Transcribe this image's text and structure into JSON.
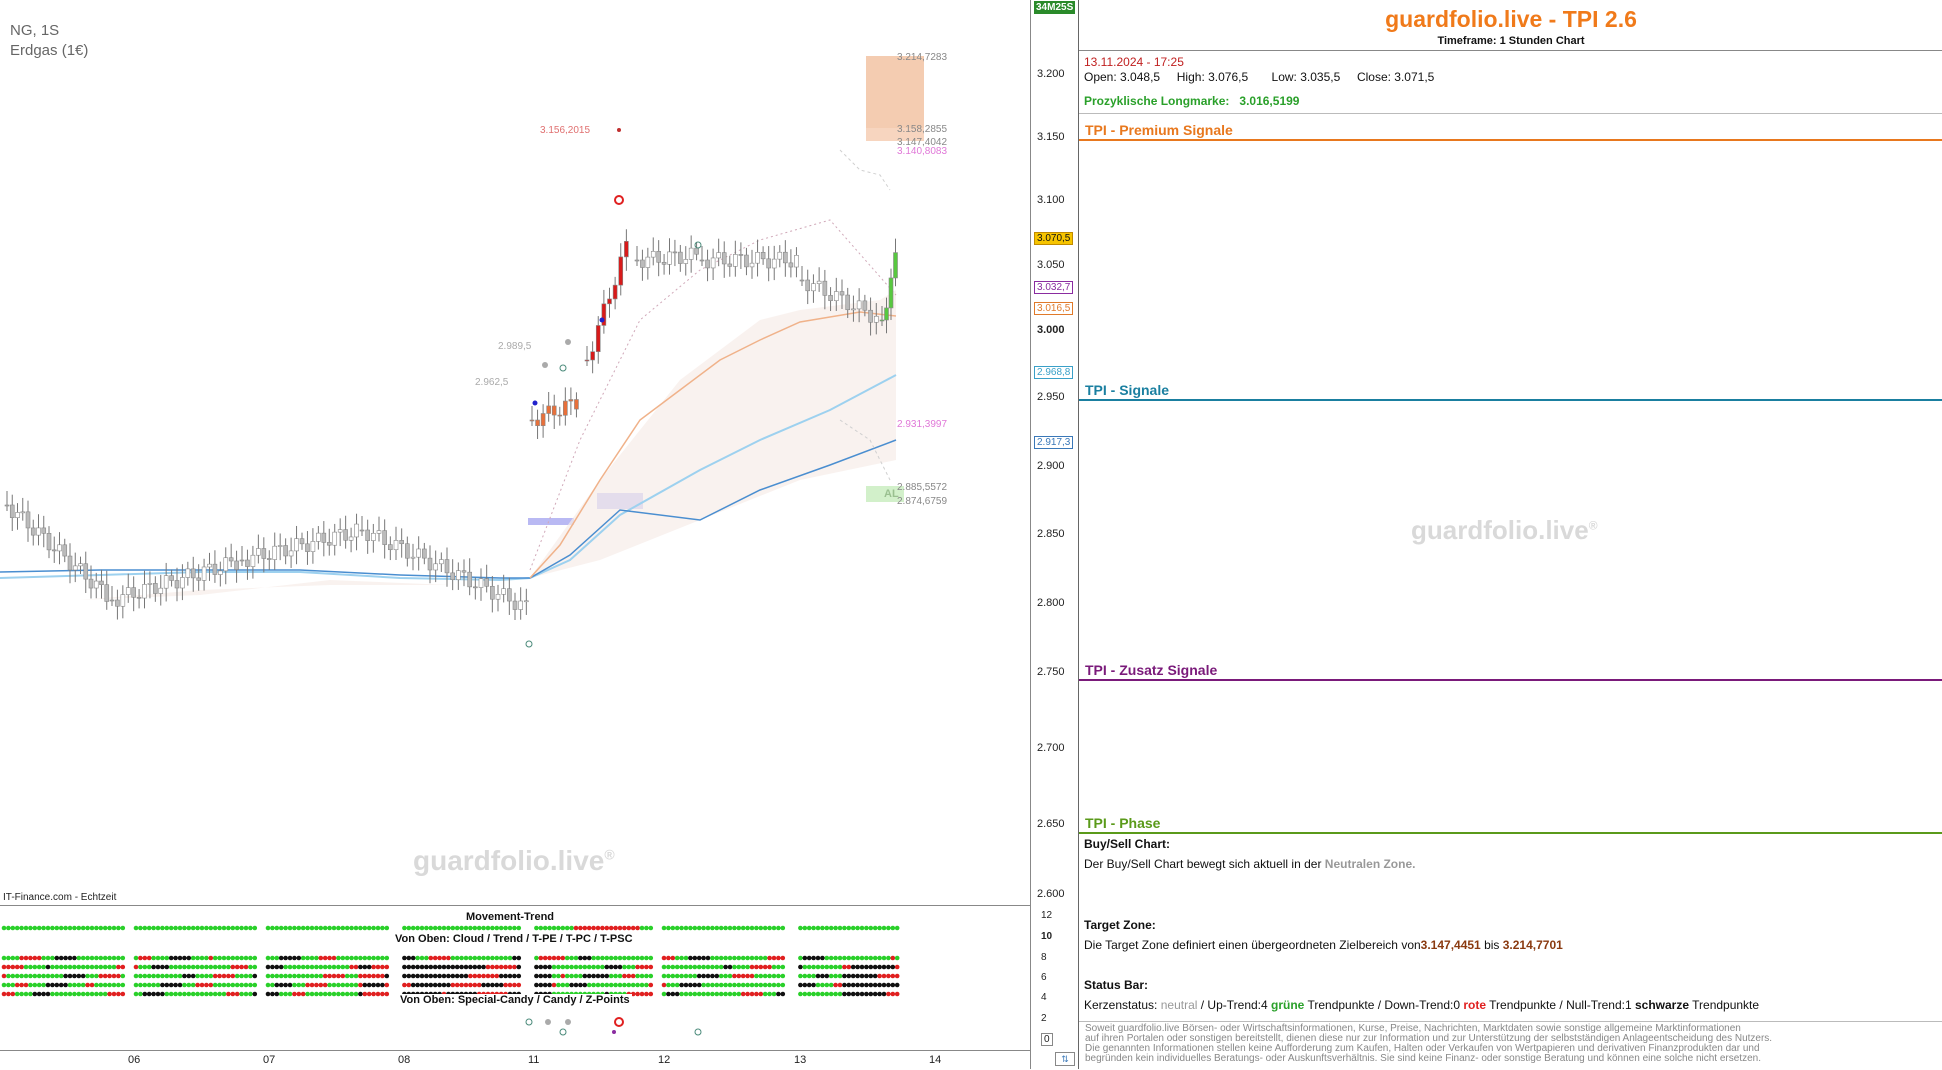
{
  "chart": {
    "symbol": "NG, 1S",
    "name": "Erdgas (1€)",
    "source": "IT-Finance.com - Echtzeit",
    "watermark": "guardfolio.live",
    "watermark_sup": "®",
    "corner_badge": "34M25S",
    "price_labels": [
      "3.214,7283",
      "3.158,2855",
      "3.147,4042",
      "3.140,8083",
      "3.156,2015",
      "2.989,5",
      "2.962,5",
      "2.931,3997",
      "2.885,5572",
      "2.874,6759"
    ],
    "al_label": "AL",
    "y_ticks": [
      "3.200",
      "3.150",
      "3.100",
      "3.050",
      "3.000",
      "2.950",
      "2.900",
      "2.850",
      "2.800",
      "2.750",
      "2.700",
      "2.650",
      "2.600"
    ],
    "y_markers": [
      {
        "label": "3.070,5",
        "color": "#c08a00",
        "fill": "#f6c400"
      },
      {
        "label": "3.032,7",
        "color": "#8a2ca0",
        "fill": "#ffffff"
      },
      {
        "label": "3.016,5",
        "color": "#e07a2a",
        "fill": "#ffffff"
      },
      {
        "label": "2.968,8",
        "color": "#3aa0c8",
        "fill": "#ffffff"
      },
      {
        "label": "2.917,3",
        "color": "#3a78b8",
        "fill": "#ffffff"
      }
    ],
    "x_ticks": [
      "06",
      "07",
      "08",
      "11",
      "12",
      "13",
      "14"
    ]
  },
  "indicator": {
    "title": "Movement-Trend",
    "sub1": "Von Oben: Cloud / Trend / T-PE / T-PC / T-PSC",
    "sub2": "Von Oben: Special-Candy / Candy / Z-Points",
    "y_ticks": [
      "12",
      "10",
      "8",
      "6",
      "4",
      "2",
      "0"
    ]
  },
  "panel": {
    "title": "guardfolio.live - TPI 2.6",
    "subtitle": "Timeframe: 1 Stunden Chart",
    "datetime": "13.11.2024 - 17:25",
    "ohlc": {
      "open_label": "Open:",
      "open": "3.048,5",
      "high_label": "High:",
      "high": "3.076,5",
      "low_label": "Low:",
      "low": "3.035,5",
      "close_label": "Close:",
      "close": "3.071,5"
    },
    "long_label": "Prozyklische Longmarke:",
    "long_value": "3.016,5199",
    "sections": [
      {
        "label": "TPI - Premium Signale",
        "color": "#e8781e"
      },
      {
        "label": "TPI - Signale",
        "color": "#1a7fa0"
      },
      {
        "label": "TPI - Zusatz Signale",
        "color": "#7a1a7a"
      },
      {
        "label": "TPI - Phase",
        "color": "#5a9a1a"
      }
    ],
    "watermark": "guardfolio.live",
    "buysell_title": "Buy/Sell Chart:",
    "buysell_text": "Der Buy/Sell Chart bewegt sich aktuell in der",
    "buysell_zone": "Neutralen Zone.",
    "target_title": "Target Zone:",
    "target_text": "Die Target Zone definiert einen übergeordneten Zielbereich von",
    "target_from": "3.147,4451",
    "target_mid": " bis ",
    "target_to": "3.214,7701",
    "status_title": "Status Bar:",
    "status": {
      "p1": "Kerzenstatus:",
      "neutral": "neutral",
      "p2": " / Up-Trend:4 ",
      "gruene": "grüne",
      "p3": " Trendpunkte  / Down-Trend:0 ",
      "rote": "rote",
      "p4": " Trendpunkte / Null-Trend:1 ",
      "schwarze": "schwarze",
      "p5": " Trendpunkte"
    },
    "disclaimer": [
      "Soweit guardfolio.live Börsen- oder Wirtschaftsinformationen, Kurse, Preise, Nachrichten, Marktdaten sowie sonstige allgemeine Marktinformationen",
      "auf ihren Portalen oder sonstigen bereitstellt, dienen diese nur zur Information und zur Unterstützung der selbstständigen Anlageentscheidung des Nutzers.",
      "Die genannten Informationen stellen keine Aufforderung zum Kaufen, Halten oder Verkaufen von Wertpapieren und derivativen Finanzprodukten dar und",
      "begründen kein individuelles Beratungs- oder Auskunftsverhältnis. Sie sind keine Finanz- oder sonstige Beratung und können eine solche nicht ersetzen."
    ]
  }
}
